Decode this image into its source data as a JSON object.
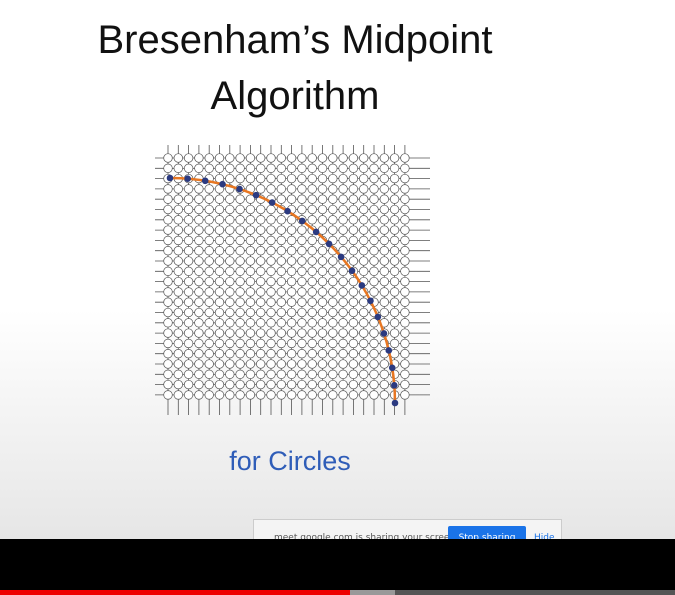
{
  "slide": {
    "title_line1": "Bresenham’s Midpoint",
    "title_line2": "Algorithm",
    "subtitle": "for Circles"
  },
  "share_bar": {
    "message": "meet.google.com is sharing your screen.",
    "stop_button": "Stop sharing",
    "hide_link": "Hide"
  }
}
